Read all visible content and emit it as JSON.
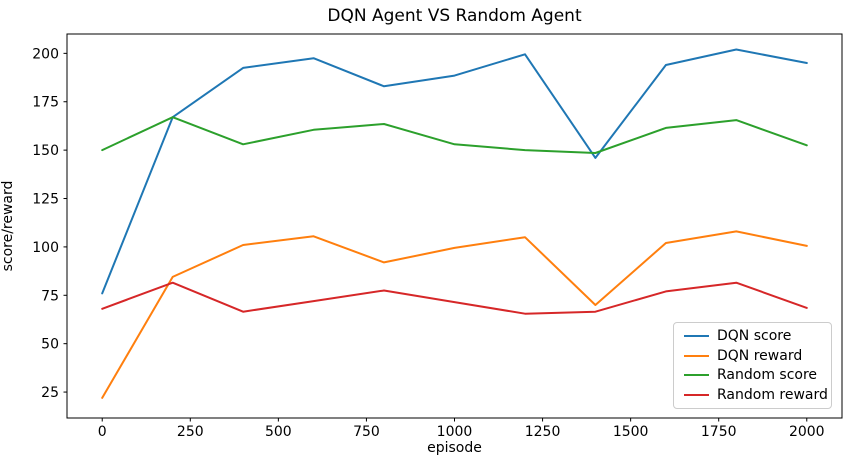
{
  "chart_data": {
    "type": "line",
    "title": "DQN Agent VS Random Agent",
    "xlabel": "episode",
    "ylabel": "score/reward",
    "x": [
      0,
      200,
      400,
      600,
      800,
      1000,
      1200,
      1400,
      1600,
      1800,
      2000
    ],
    "series": [
      {
        "name": "DQN score",
        "color": "#1f77b4",
        "values": [
          76,
          167,
          192.5,
          197.5,
          183,
          188.5,
          199.5,
          146,
          194,
          202,
          195
        ]
      },
      {
        "name": "DQN reward",
        "color": "#ff7f0e",
        "values": [
          22,
          84.5,
          101,
          105.5,
          92,
          99.5,
          105,
          70,
          102,
          108,
          100.5
        ]
      },
      {
        "name": "Random score",
        "color": "#2ca02c",
        "values": [
          150,
          167,
          153,
          160.5,
          163.5,
          153,
          150,
          148.5,
          161.5,
          165.5,
          152.5
        ]
      },
      {
        "name": "Random reward",
        "color": "#d62728",
        "values": [
          68,
          81.5,
          66.5,
          72,
          77.5,
          71.5,
          65.5,
          66.5,
          77,
          81.5,
          68.5
        ]
      }
    ],
    "xticks": [
      0,
      250,
      500,
      750,
      1000,
      1250,
      1500,
      1750,
      2000
    ],
    "yticks": [
      25,
      50,
      75,
      100,
      125,
      150,
      175,
      200
    ],
    "xlim": [
      -100,
      2100
    ],
    "ylim": [
      11.6,
      210.0
    ],
    "grid": false,
    "legend_position": "lower right",
    "colors": {
      "background": "#ffffff",
      "spine": "#000000",
      "tick_label": "#000000",
      "legend_border": "#cccccc"
    }
  }
}
